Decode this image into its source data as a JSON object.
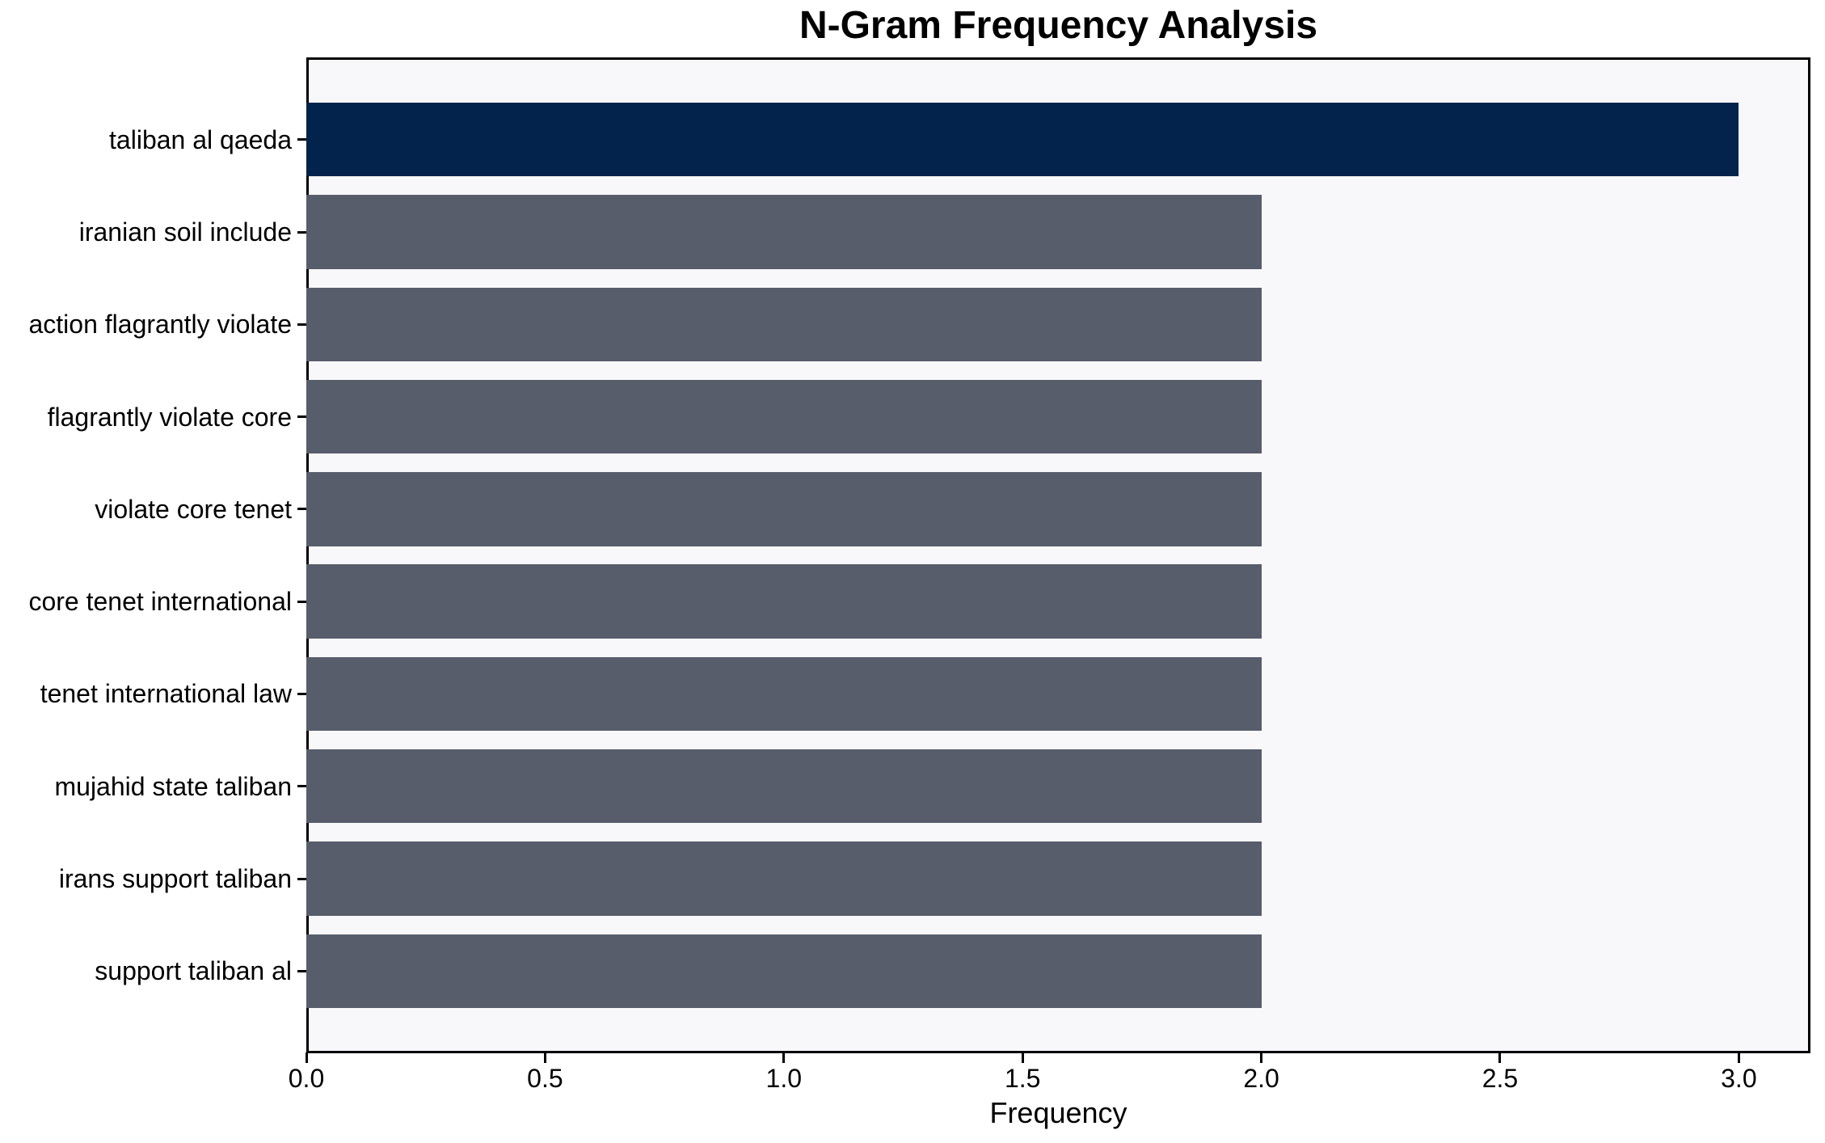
{
  "chart_data": {
    "type": "bar",
    "orientation": "horizontal",
    "title": "N-Gram Frequency Analysis",
    "xlabel": "Frequency",
    "ylabel": "",
    "categories": [
      "taliban al qaeda",
      "iranian soil include",
      "action flagrantly violate",
      "flagrantly violate core",
      "violate core tenet",
      "core tenet international",
      "tenet international law",
      "mujahid state taliban",
      "irans support taliban",
      "support taliban al"
    ],
    "values": [
      3.0,
      2.0,
      2.0,
      2.0,
      2.0,
      2.0,
      2.0,
      2.0,
      2.0,
      2.0
    ],
    "bar_colors": [
      "#03234c",
      "#575d6b",
      "#575d6b",
      "#575d6b",
      "#575d6b",
      "#575d6b",
      "#575d6b",
      "#575d6b",
      "#575d6b",
      "#575d6b"
    ],
    "x_tick_values": [
      0.0,
      0.5,
      1.0,
      1.5,
      2.0,
      2.5,
      3.0
    ],
    "x_tick_labels": [
      "0.0",
      "0.5",
      "1.0",
      "1.5",
      "2.0",
      "2.5",
      "3.0"
    ],
    "xlim": [
      0,
      3.15
    ],
    "bar_height_ratio": 0.8,
    "grid": false,
    "legend": null,
    "colors": {
      "highlight_bar": "#03234c",
      "default_bar": "#575d6b",
      "plot_background": "#f8f8fa",
      "figure_background": "#ffffff",
      "spine": "#000000",
      "text": "#000000"
    }
  }
}
